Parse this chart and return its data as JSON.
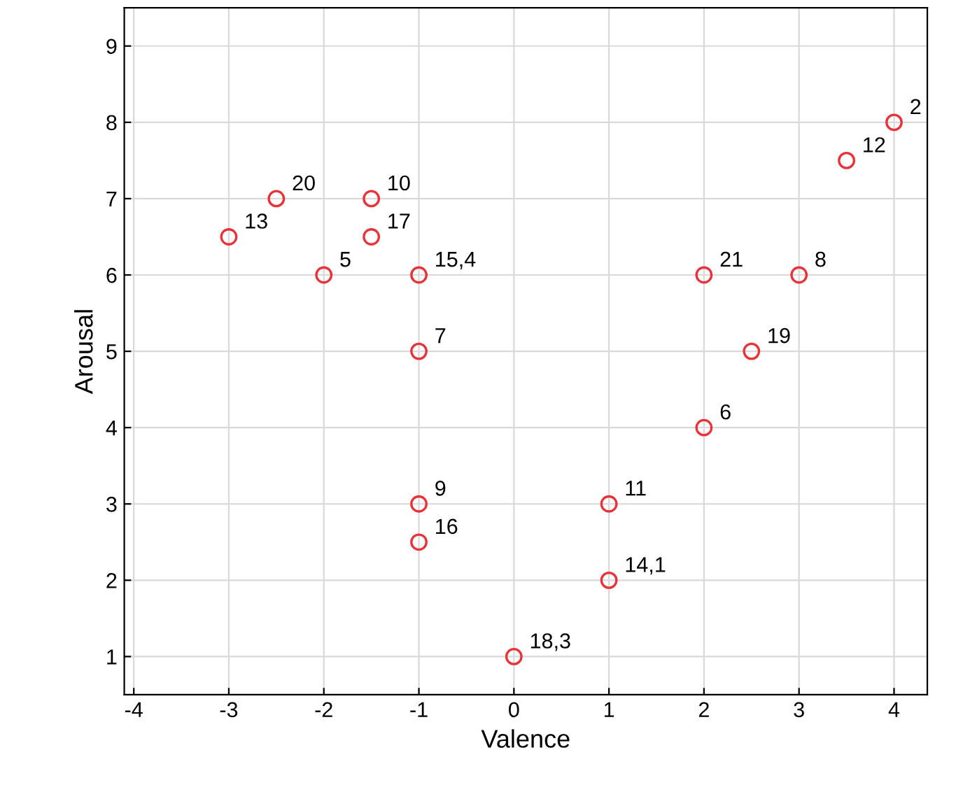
{
  "chart_data": {
    "type": "scatter",
    "xlabel": "Valence",
    "ylabel": "Arousal",
    "x": [
      4,
      3.5,
      -2.5,
      -1.5,
      -3,
      -1.5,
      -2,
      -1,
      2,
      3,
      -1,
      2.5,
      2,
      -1,
      1,
      -1,
      1,
      0
    ],
    "values": [
      8,
      7.5,
      7,
      7,
      6.5,
      6.5,
      6,
      6,
      6,
      6,
      5,
      5,
      4,
      3,
      3,
      2.5,
      2,
      1
    ],
    "color": "#e8333a",
    "marker": "circle",
    "annotations": [
      {
        "text": "2",
        "x": 4,
        "y": 8
      },
      {
        "text": "12",
        "x": 3.5,
        "y": 7.5
      },
      {
        "text": "20",
        "x": -2.5,
        "y": 7
      },
      {
        "text": "10",
        "x": -1.5,
        "y": 7
      },
      {
        "text": "13",
        "x": -3,
        "y": 6.5
      },
      {
        "text": "17",
        "x": -1.5,
        "y": 6.5
      },
      {
        "text": "5",
        "x": -2,
        "y": 6
      },
      {
        "text": "15,4",
        "x": -1,
        "y": 6
      },
      {
        "text": "21",
        "x": 2,
        "y": 6
      },
      {
        "text": "8",
        "x": 3,
        "y": 6
      },
      {
        "text": "7",
        "x": -1,
        "y": 5
      },
      {
        "text": "19",
        "x": 2.5,
        "y": 5
      },
      {
        "text": "6",
        "x": 2,
        "y": 4
      },
      {
        "text": "9",
        "x": -1,
        "y": 3
      },
      {
        "text": "11",
        "x": 1,
        "y": 3
      },
      {
        "text": "16",
        "x": -1,
        "y": 2.5
      },
      {
        "text": "14,1",
        "x": 1,
        "y": 2
      },
      {
        "text": "18,3",
        "x": 0,
        "y": 1
      }
    ],
    "xlim": [
      -4.1,
      4.35
    ],
    "ylim": [
      0.5,
      9.5
    ],
    "xticks": [
      -4,
      -3,
      -2,
      -1,
      0,
      1,
      2,
      3,
      4
    ],
    "yticks": [
      1,
      2,
      3,
      4,
      5,
      6,
      7,
      8,
      9
    ],
    "grid": true
  }
}
